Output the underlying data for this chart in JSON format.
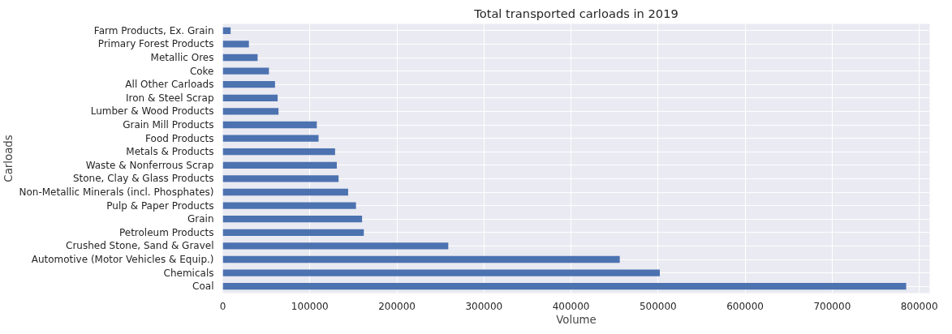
{
  "chart_data": {
    "type": "bar",
    "orientation": "horizontal",
    "title": "Total transported carloads in 2019",
    "xlabel": "Volume",
    "ylabel": "Carloads",
    "categories": [
      "Farm Products, Ex. Grain",
      "Primary Forest Products",
      "Metallic Ores",
      "Coke",
      "All Other Carloads",
      "Iron & Steel Scrap",
      "Lumber & Wood Products",
      "Grain Mill Products",
      "Food Products",
      "Metals & Products",
      "Waste & Nonferrous Scrap",
      "Stone, Clay & Glass Products",
      "Non-Metallic Minerals (incl. Phosphates)",
      "Pulp & Paper Products",
      "Grain",
      "Petroleum Products",
      "Crushed Stone, Sand & Gravel",
      "Automotive (Motor Vehicles & Equip.)",
      "Chemicals",
      "Coal"
    ],
    "values": [
      9000,
      30000,
      40000,
      53000,
      60000,
      63000,
      64000,
      108000,
      110000,
      129000,
      131000,
      133000,
      144000,
      153000,
      160000,
      162000,
      259000,
      456000,
      502000,
      785000
    ],
    "color": "#4c72b0",
    "xlim": [
      0,
      812000
    ],
    "xticks": [
      0,
      100000,
      200000,
      300000,
      400000,
      500000,
      600000,
      700000,
      800000
    ],
    "grid": true
  }
}
